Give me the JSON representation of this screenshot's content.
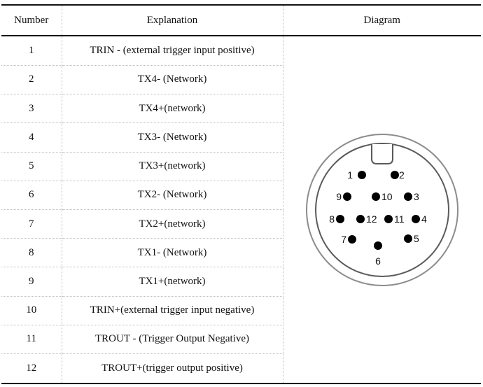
{
  "table": {
    "headers": {
      "number": "Number",
      "explanation": "Explanation",
      "diagram": "Diagram"
    },
    "rows": [
      {
        "number": "1",
        "explanation": "TRIN - (external trigger input positive)"
      },
      {
        "number": "2",
        "explanation": "TX4- (Network)"
      },
      {
        "number": "3",
        "explanation": "TX4+(network)"
      },
      {
        "number": "4",
        "explanation": "TX3- (Network)"
      },
      {
        "number": "5",
        "explanation": "TX3+(network)"
      },
      {
        "number": "6",
        "explanation": "TX2- (Network)"
      },
      {
        "number": "7",
        "explanation": "TX2+(network)"
      },
      {
        "number": "8",
        "explanation": "TX1- (Network)"
      },
      {
        "number": "9",
        "explanation": "TX1+(network)"
      },
      {
        "number": "10",
        "explanation": "TRIN+(external trigger input negative)"
      },
      {
        "number": "11",
        "explanation": "TROUT - (Trigger Output Negative)"
      },
      {
        "number": "12",
        "explanation": "TROUT+(trigger output positive)"
      }
    ]
  },
  "diagram": {
    "pin_labels": [
      "1",
      "2",
      "3",
      "4",
      "5",
      "6",
      "7",
      "8",
      "9",
      "10",
      "11",
      "12"
    ]
  }
}
